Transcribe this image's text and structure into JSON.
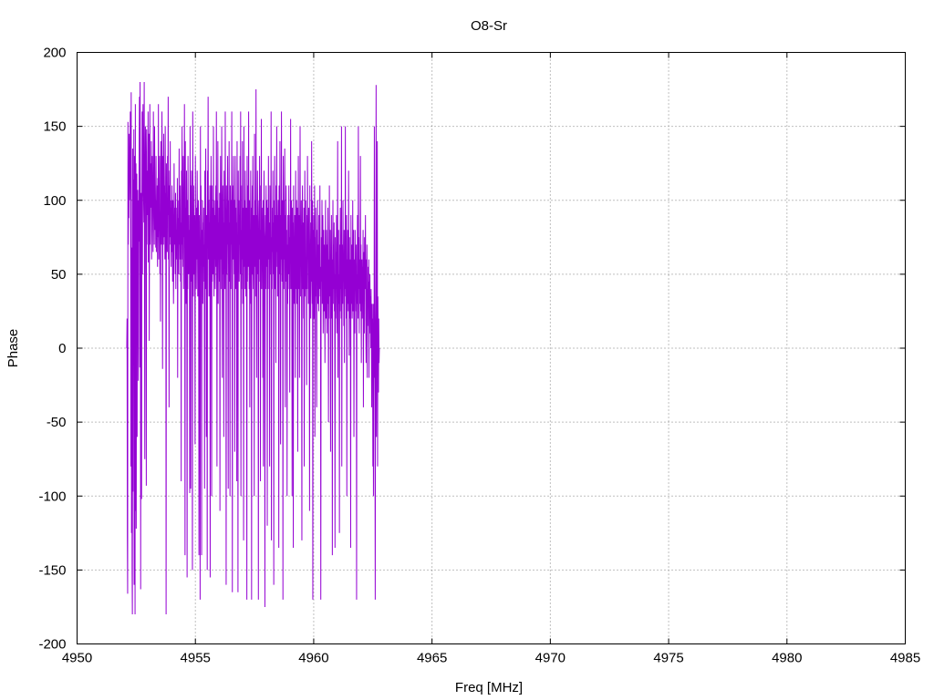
{
  "chart_data": {
    "type": "line",
    "title": "O8-Sr",
    "xlabel": "Freq [MHz]",
    "ylabel": "Phase",
    "xlim": [
      4950,
      4985
    ],
    "ylim": [
      -200,
      200
    ],
    "x_ticks": [
      4950,
      4955,
      4960,
      4965,
      4970,
      4975,
      4980,
      4985
    ],
    "y_ticks": [
      -200,
      -150,
      -100,
      -50,
      0,
      50,
      100,
      150,
      200
    ],
    "grid": true,
    "legend": "none",
    "series": [
      {
        "color": "#9400d3",
        "x_start": 4952.1,
        "x_step": 0.0125,
        "values": [
          0,
          20,
          -127,
          -166,
          153,
          70,
          110,
          88,
          145,
          100,
          118,
          126,
          160,
          95,
          -80,
          173,
          -125,
          68,
          -150,
          -180,
          135,
          -97,
          114,
          60,
          148,
          -160,
          130,
          70,
          -180,
          165,
          -110,
          125,
          -122,
          75,
          118,
          -60,
          96,
          107,
          30,
          -22,
          100,
          72,
          140,
          170,
          -13,
          180,
          110,
          -163,
          70,
          105,
          -102,
          70,
          160,
          50,
          138,
          165,
          112,
          100,
          85,
          180,
          58,
          -75,
          112,
          150,
          130,
          108,
          -93,
          148,
          70,
          120,
          100,
          90,
          160,
          58,
          75,
          145,
          5,
          100,
          165,
          70,
          125,
          110,
          95,
          140,
          60,
          80,
          130,
          100,
          110,
          65,
          160,
          90,
          100,
          70,
          150,
          115,
          80,
          100,
          68,
          130,
          65,
          100,
          75,
          110,
          55,
          115,
          75,
          165,
          60,
          100,
          80,
          130,
          50,
          92,
          18,
          140,
          95,
          70,
          100,
          160,
          120,
          -14,
          85,
          130,
          70,
          145,
          100,
          75,
          110,
          60,
          150,
          80,
          105,
          -180,
          125,
          75,
          100,
          65,
          130,
          90,
          170,
          60,
          110,
          -40,
          90,
          120,
          75,
          140,
          70,
          95,
          55,
          100,
          65,
          110,
          80,
          45,
          100,
          72,
          30,
          60,
          125,
          85,
          70,
          95,
          50,
          105,
          40,
          80,
          60,
          95,
          70,
          115,
          -20,
          88,
          60,
          100,
          50,
          135,
          70,
          95,
          60,
          110,
          45,
          85,
          -90,
          120,
          60,
          150,
          70,
          95,
          55,
          130,
          40,
          108,
          75,
          165,
          60,
          -140,
          140,
          50,
          95,
          30,
          120,
          65,
          -155,
          100,
          40,
          130,
          70,
          50,
          90,
          55,
          80,
          -98,
          150,
          70,
          -95,
          110,
          45,
          120,
          75,
          40,
          -150,
          160,
          95,
          35,
          110,
          75,
          50,
          90,
          60,
          -65,
          130,
          70,
          85,
          40,
          95,
          60,
          120,
          75,
          35,
          85,
          100,
          50,
          -140,
          90,
          65,
          40,
          -170,
          150,
          70,
          110,
          45,
          -140,
          80,
          60,
          100,
          30,
          85,
          55,
          95,
          45,
          70,
          -95,
          120,
          60,
          40,
          135,
          70,
          -60,
          90,
          40,
          -150,
          120,
          75,
          170,
          60,
          100,
          35,
          85,
          65,
          110,
          -155,
          40,
          80,
          130,
          60,
          -100,
          110,
          45,
          75,
          95,
          50,
          150,
          70,
          35,
          100,
          60,
          90,
          40,
          85,
          110,
          55,
          160,
          70,
          -80,
          100,
          50,
          140,
          30,
          85,
          60,
          95,
          45,
          105,
          -110,
          80,
          130,
          60,
          95,
          40,
          150,
          70,
          -20,
          90,
          110,
          50,
          85,
          -60,
          120,
          65,
          100,
          40,
          160,
          75,
          95,
          -160,
          110,
          50,
          90,
          70,
          130,
          60,
          -95,
          100,
          75,
          140,
          45,
          85,
          -100,
          110,
          65,
          40,
          100,
          70,
          160,
          50,
          -165,
          90,
          110,
          60,
          130,
          85,
          50,
          100,
          -70,
          75,
          130,
          40,
          95,
          65,
          85,
          -90,
          140,
          55,
          75,
          -165,
          120,
          60,
          100,
          45,
          90,
          70,
          130,
          50,
          160,
          -100,
          80,
          40,
          110,
          60,
          140,
          30,
          95,
          70,
          -130,
          150,
          55,
          80,
          100,
          40,
          120,
          75,
          35,
          95,
          60,
          -170,
          130,
          45,
          85,
          110,
          55,
          160,
          70,
          40,
          100,
          -40,
          80,
          65,
          120,
          30,
          95,
          -170,
          75,
          110,
          50,
          130,
          60,
          40,
          90,
          70,
          -100,
          145,
          55,
          80,
          100,
          35,
          175,
          60,
          -20,
          90,
          50,
          120,
          75,
          40,
          -170,
          85,
          100,
          60,
          130,
          45,
          80,
          -90,
          110,
          60,
          155,
          40,
          85,
          70,
          95,
          -20,
          100,
          -80,
          50,
          120,
          80,
          70,
          -175,
          60,
          90,
          40,
          110,
          55,
          85,
          100,
          -120,
          65,
          95,
          40,
          130,
          60,
          85,
          70,
          -80,
          110,
          50,
          100,
          60,
          160,
          -130,
          75,
          40,
          95,
          65,
          120,
          50,
          85,
          -160,
          100,
          60,
          130,
          40,
          90,
          70,
          -10,
          110,
          55,
          150,
          65,
          90,
          35,
          80,
          100,
          60,
          -135,
          110,
          50,
          75,
          140,
          40,
          -65,
          90,
          60,
          160,
          70,
          45,
          100,
          55,
          -170,
          130,
          75,
          40,
          100,
          60,
          135,
          50,
          -40,
          90,
          65,
          110,
          45,
          80,
          -100,
          70,
          30,
          90,
          50,
          60,
          110,
          40,
          75,
          -30,
          90,
          60,
          155,
          40,
          80,
          100,
          50,
          -100,
          95,
          40,
          85,
          -135,
          110,
          55,
          70,
          30,
          90,
          60,
          -20,
          120,
          40,
          75,
          100,
          30,
          65,
          95,
          -70,
          45,
          130,
          55,
          40,
          90,
          -20,
          75,
          150,
          35,
          80,
          60,
          100,
          20,
          -130,
          70,
          110,
          40,
          85,
          60,
          20,
          95,
          -80,
          55,
          120,
          35,
          75,
          100,
          40,
          60,
          -25,
          90,
          40,
          130,
          60,
          75,
          30,
          95,
          60,
          50,
          -110,
          110,
          40,
          85,
          20,
          70,
          45,
          140,
          55,
          30,
          100,
          -170,
          80,
          50,
          90,
          20,
          60,
          110,
          -60,
          75,
          35,
          95,
          50,
          20,
          -40,
          80,
          60,
          100,
          30,
          40,
          70,
          25,
          90,
          40,
          65,
          110,
          35,
          55,
          -170,
          20,
          75,
          45,
          100,
          30,
          60,
          90,
          10,
          50,
          80,
          25,
          70,
          40,
          -10,
          60,
          100,
          35,
          20,
          80,
          50,
          10,
          70,
          30,
          95,
          45,
          -50,
          60,
          20,
          110,
          35,
          65,
          80,
          -70,
          40,
          55,
          90,
          20,
          60,
          -140,
          45,
          100,
          30,
          70,
          40,
          85,
          25,
          50,
          -135,
          75,
          20,
          65,
          40,
          90,
          10,
          55,
          35,
          140,
          -20,
          60,
          80,
          30,
          50,
          -125,
          70,
          25,
          95,
          40,
          60,
          20,
          150,
          -80,
          50,
          70,
          30,
          100,
          45,
          60,
          15,
          80,
          -10,
          55,
          35,
          150,
          40,
          70,
          20,
          90,
          -100,
          60,
          30,
          80,
          50,
          25,
          120,
          40,
          -5,
          75,
          20,
          60,
          45,
          -135,
          90,
          30,
          55,
          70,
          20,
          40,
          100,
          25,
          60,
          80,
          -60,
          35,
          60,
          10,
          80,
          40,
          55,
          25,
          70,
          -170,
          50,
          30,
          90,
          60,
          20,
          150,
          40,
          75,
          10,
          60,
          30,
          50,
          130,
          25,
          70,
          -10,
          45,
          60,
          20,
          55,
          40,
          80,
          -40,
          30,
          65,
          10,
          75,
          40,
          55,
          90,
          20,
          -10,
          60,
          35,
          70,
          -20,
          40,
          15,
          55,
          30,
          60,
          -20,
          45,
          10,
          50,
          20,
          35,
          0,
          40,
          15,
          -40,
          30,
          -20,
          20,
          -80,
          30,
          -100,
          5,
          -20,
          150,
          25,
          -30,
          -170,
          10,
          50,
          178,
          -60,
          30,
          10,
          140,
          -80,
          35,
          10,
          -30,
          20,
          -10,
          0
        ]
      }
    ]
  }
}
